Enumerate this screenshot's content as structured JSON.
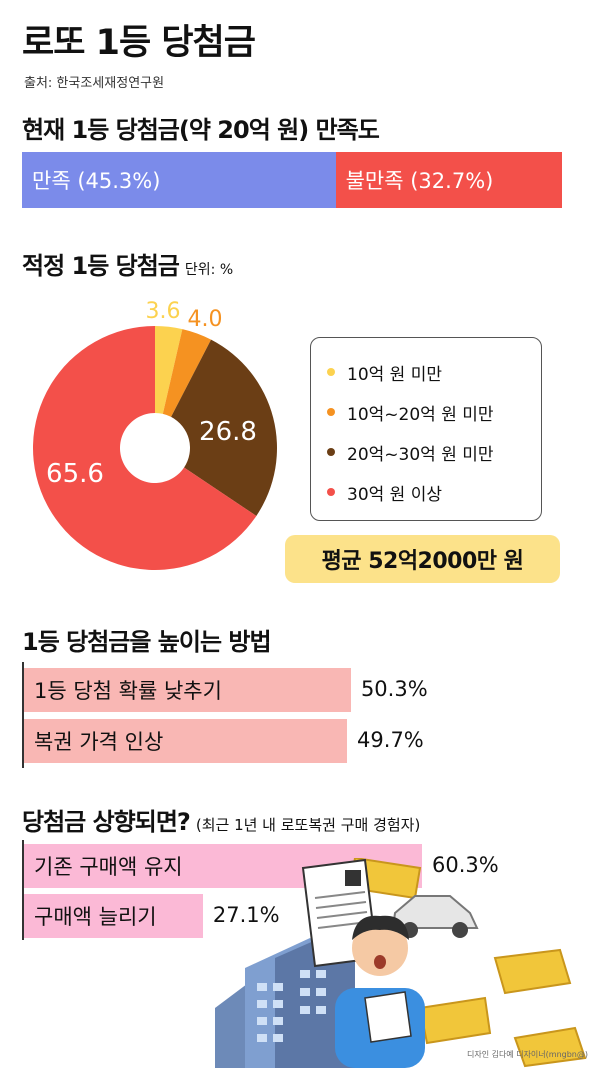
{
  "title": "로또 1등 당첨금",
  "source": "출처: 한국조세재정연구원",
  "satisfaction": {
    "heading": "현재 1등 당첨금(약 20억 원) 만족도",
    "segments": [
      {
        "label": "만족 (45.3%)",
        "value": 45.3,
        "color": "#7b8bea"
      },
      {
        "label": "불만족 (32.7%)",
        "value": 32.7,
        "color": "#f3504a"
      }
    ]
  },
  "appropriate": {
    "heading": "적정 1등 당첨금",
    "unit": "단위: %",
    "average": "평균 52억2000만 원"
  },
  "methods": {
    "heading": "1등 당첨금을 높이는 방법",
    "bar_color": "#f9b7b4"
  },
  "raise": {
    "heading": "당첨금 상향되면?",
    "subheading": "(최근 1년 내 로또복권 구매 경험자)",
    "bar_color": "#fbb9d6"
  },
  "credit": "디자인 김다예 디자이너(mngbn@)",
  "chart_data": [
    {
      "type": "pie",
      "title": "적정 1등 당첨금",
      "unit": "%",
      "categories": [
        "10억 원 미만",
        "10억~20억 원 미만",
        "20억~30억 원 미만",
        "30억 원 이상"
      ],
      "values": [
        3.6,
        4.0,
        26.8,
        65.6
      ],
      "labels": [
        "3.6",
        "4.0",
        "26.8",
        "65.6"
      ],
      "colors": [
        "#fcd24f",
        "#f59221",
        "#6b3e15",
        "#f3504a"
      ],
      "legend": "right"
    },
    {
      "type": "bar",
      "title": "1등 당첨금을 높이는 방법",
      "orientation": "horizontal",
      "categories": [
        "1등 당첨 확률 낮추기",
        "복권 가격 인상"
      ],
      "values": [
        50.3,
        49.7
      ],
      "labels": [
        "50.3%",
        "49.7%"
      ]
    },
    {
      "type": "bar",
      "title": "당첨금 상향되면?",
      "orientation": "horizontal",
      "categories": [
        "기존 구매액 유지",
        "구매액 늘리기"
      ],
      "values": [
        60.3,
        27.1
      ],
      "labels": [
        "60.3%",
        "27.1%"
      ]
    }
  ]
}
